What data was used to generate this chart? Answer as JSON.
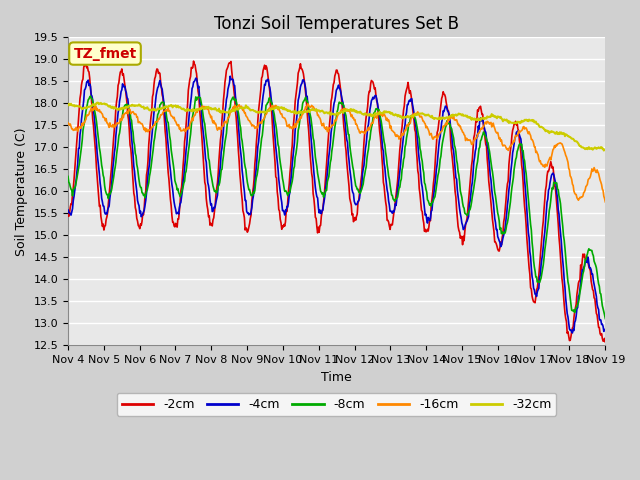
{
  "title": "Tonzi Soil Temperatures Set B",
  "xlabel": "Time",
  "ylabel": "Soil Temperature (C)",
  "ylim": [
    12.5,
    19.5
  ],
  "series_colors": [
    "#dd0000",
    "#0000cc",
    "#00aa00",
    "#ff8800",
    "#cccc00"
  ],
  "series_labels": [
    "-2cm",
    "-4cm",
    "-8cm",
    "-16cm",
    "-32cm"
  ],
  "annotation_text": "TZ_fmet",
  "annotation_color": "#cc0000",
  "annotation_bg": "#ffffcc",
  "annotation_border": "#aaaa00",
  "plot_bg_color": "#e8e8e8",
  "fig_bg_color": "#d0d0d0",
  "grid_color": "#ffffff",
  "title_fontsize": 12,
  "axis_label_fontsize": 9,
  "tick_fontsize": 8
}
